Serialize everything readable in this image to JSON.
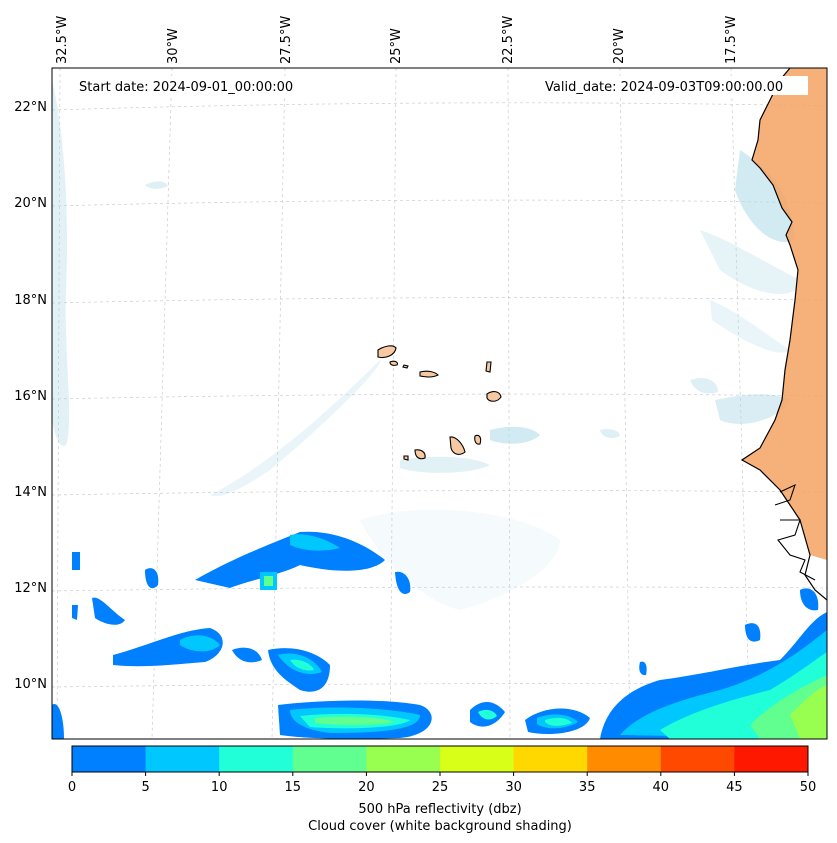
{
  "map": {
    "start_date_label": "Start date: 2024-09-01_00:00:00",
    "valid_date_label": "Valid_date: 2024-09-03T09:00:00.00",
    "lon_ticks": [
      "32.5°W",
      "30°W",
      "27.5°W",
      "25°W",
      "22.5°W",
      "20°W",
      "17.5°W"
    ],
    "lat_ticks": [
      "22°N",
      "20°N",
      "18°N",
      "16°N",
      "14°N",
      "12°N",
      "10°N"
    ],
    "lat_range": [
      8.9,
      22.8
    ],
    "lon_range": [
      -33.0,
      -16.5
    ],
    "gridlines": true,
    "colors": {
      "land": "#f4a261",
      "cloud_shade": "#add8e6",
      "coastline": "#000000"
    }
  },
  "colorbar": {
    "ticks": [
      "0",
      "5",
      "10",
      "15",
      "20",
      "25",
      "30",
      "35",
      "40",
      "45",
      "50"
    ],
    "colors": [
      "#0080ff",
      "#00c8ff",
      "#20ffd8",
      "#60ff90",
      "#98ff50",
      "#d8ff18",
      "#ffd800",
      "#ff8c00",
      "#ff4800",
      "#ff1800"
    ],
    "label_line1": "500 hPa reflectivity (dbz)",
    "label_line2": "Cloud cover (white background shading)"
  }
}
